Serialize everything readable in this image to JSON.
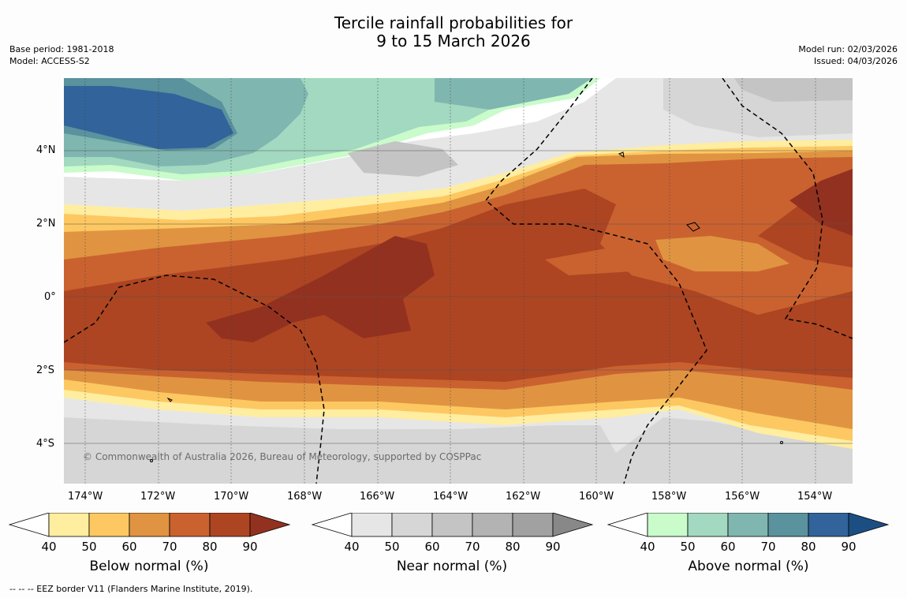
{
  "title_line1": "Tercile rainfall probabilities for",
  "title_line2": "9 to 15 March 2026",
  "base_period": "Base period: 1981-2018",
  "model": "Model: ACCESS-S2",
  "model_run": "Model run: 02/03/2026",
  "issued": "Issued: 04/03/2026",
  "copyright": "© Commonwealth of Australia 2026, Bureau of Meteorology, supported by COSPPac",
  "lon_ticks": [
    "174°W",
    "172°W",
    "170°W",
    "168°W",
    "166°W",
    "164°W",
    "162°W",
    "160°W",
    "158°W",
    "156°W",
    "154°W"
  ],
  "lat_ticks": [
    "4°N",
    "2°N",
    "0°",
    "2°S",
    "4°S"
  ],
  "colorbars": [
    {
      "label": "Below normal (%)",
      "ticks": [
        "40",
        "50",
        "60",
        "70",
        "80",
        "90"
      ],
      "colors": [
        "#ffffff",
        "#ffeda0",
        "#fdc862",
        "#e09441",
        "#ca6230",
        "#ad4522",
        "#933120"
      ]
    },
    {
      "label": "Near normal (%)",
      "ticks": [
        "40",
        "50",
        "60",
        "70",
        "80",
        "90"
      ],
      "colors": [
        "#ffffff",
        "#e6e6e6",
        "#d6d6d6",
        "#c4c4c4",
        "#b3b3b3",
        "#a1a1a1",
        "#888888"
      ]
    },
    {
      "label": "Above normal (%)",
      "ticks": [
        "40",
        "50",
        "60",
        "70",
        "80",
        "90"
      ],
      "colors": [
        "#ffffff",
        "#c9fbcb",
        "#a2d9c0",
        "#80b6b0",
        "#5a929e",
        "#32639a",
        "#1b4f84"
      ]
    }
  ],
  "footer": "--  --  -- EEZ border V11 (Flanders Marine Institute, 2019)."
}
